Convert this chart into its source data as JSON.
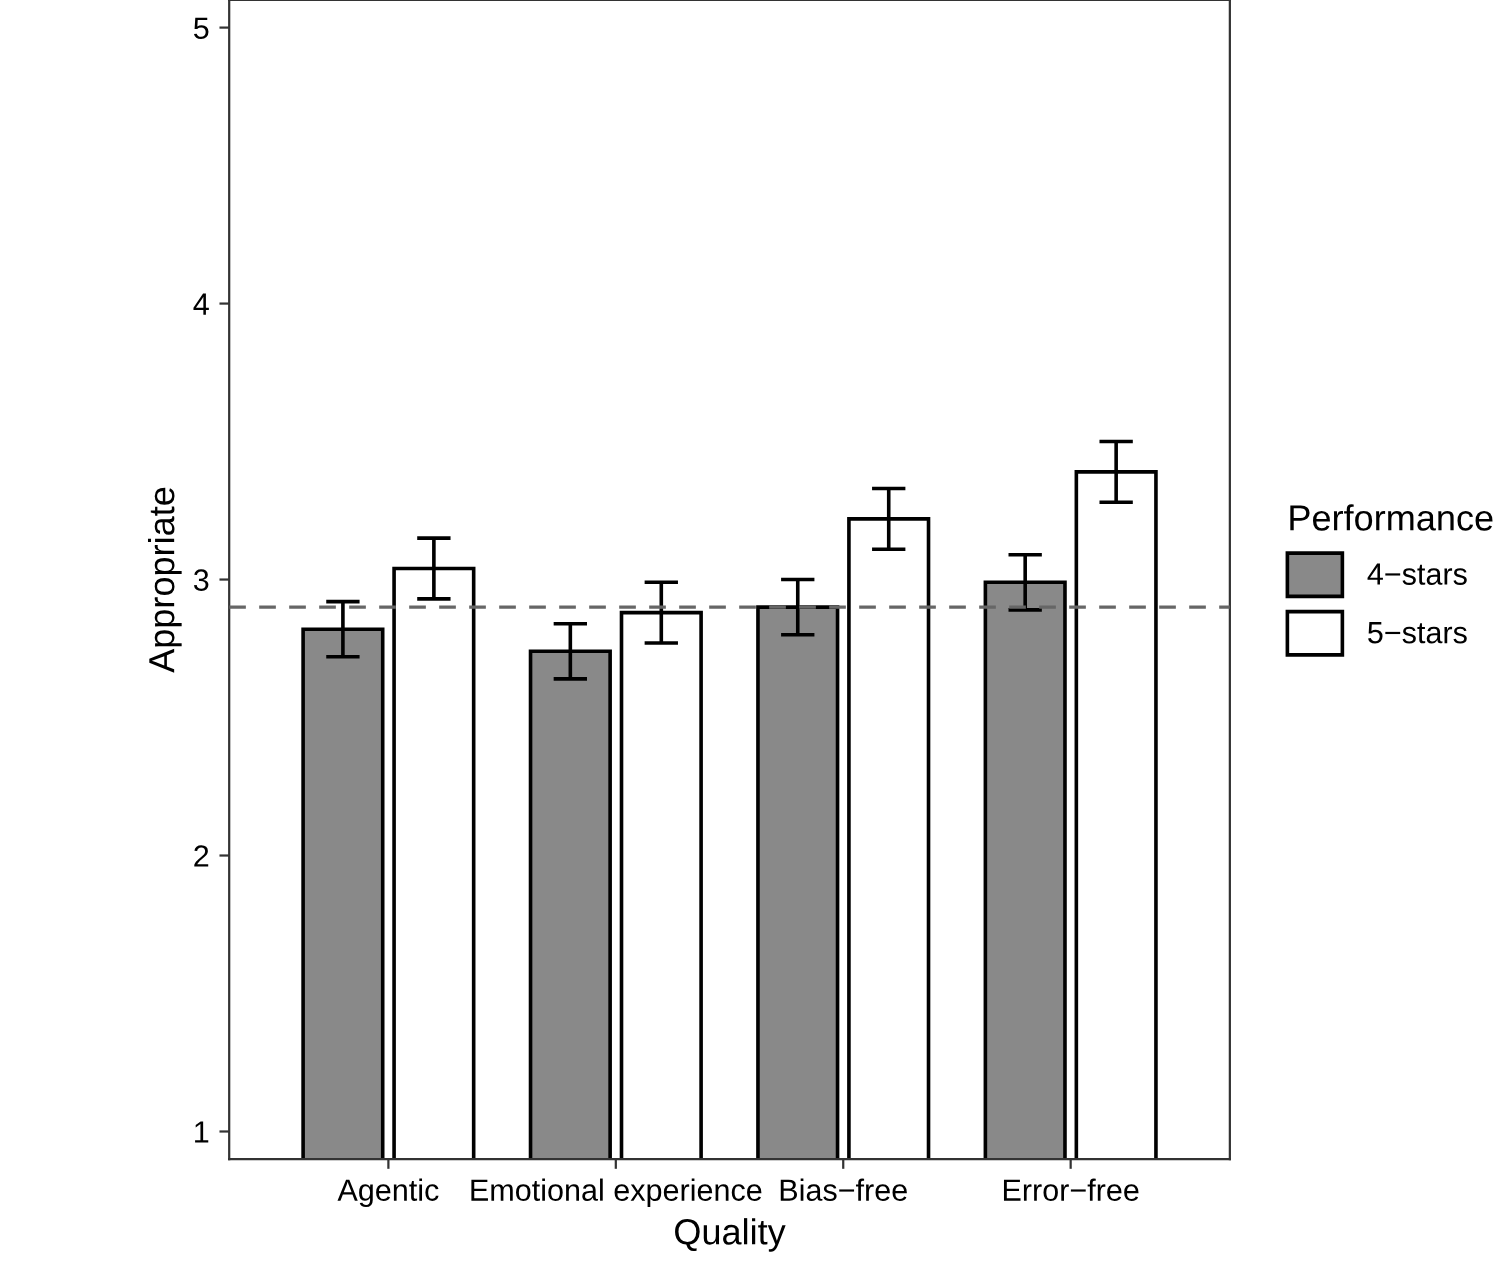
{
  "chart_data": {
    "type": "bar",
    "xlabel": "Quality",
    "ylabel": "Appropriate",
    "legend_title": "Performance",
    "categories": [
      "Agentic",
      "Emotional experience",
      "Bias−free",
      "Error−free"
    ],
    "series": [
      {
        "name": "4−stars",
        "color": "#898989",
        "values": [
          2.82,
          2.74,
          2.9,
          2.99
        ],
        "errors": [
          0.1,
          0.1,
          0.1,
          0.1
        ]
      },
      {
        "name": "5−stars",
        "color": "#ffffff",
        "values": [
          3.04,
          2.88,
          3.22,
          3.39
        ],
        "errors": [
          0.11,
          0.11,
          0.11,
          0.11
        ]
      }
    ],
    "ylim": [
      0.9,
      5.1
    ],
    "yticks": [
      1,
      2,
      3,
      4,
      5
    ],
    "grid": false,
    "legend": "right",
    "ref_lines": [
      {
        "axis": "y",
        "value": 2.9,
        "color": "#666666",
        "line_style": "dashed"
      }
    ]
  }
}
